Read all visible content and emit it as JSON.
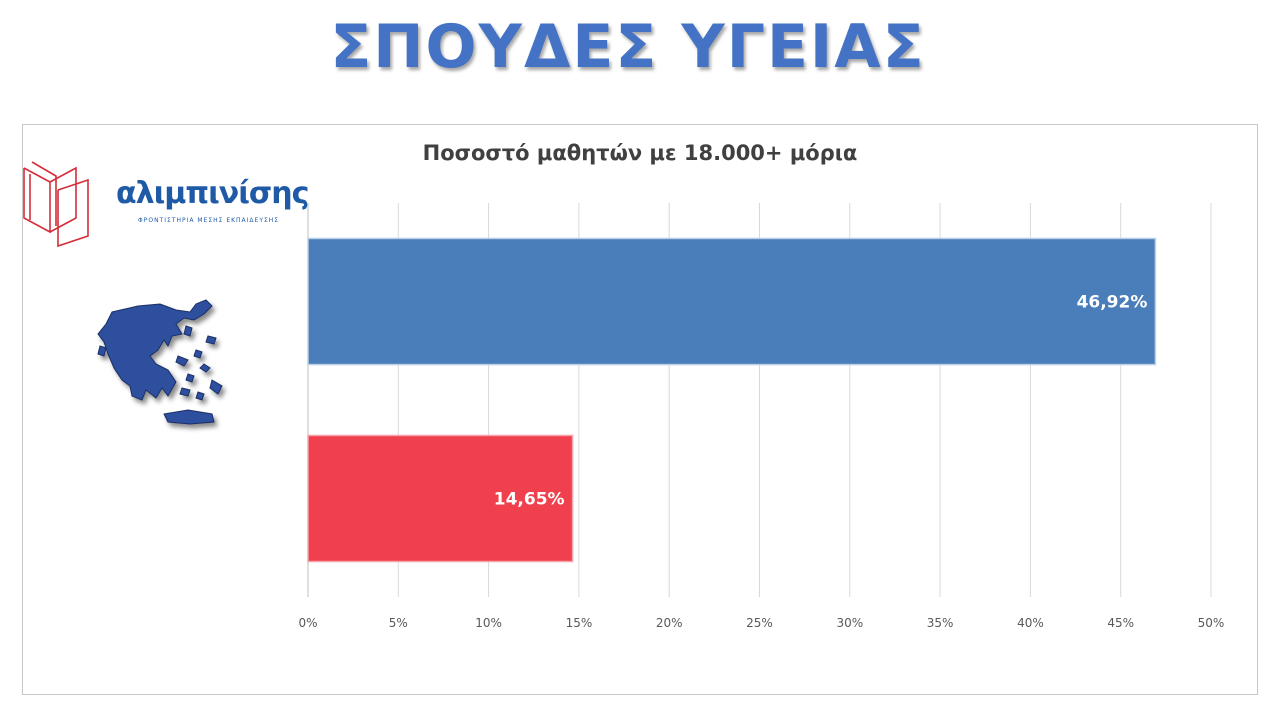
{
  "page": {
    "title": "ΣΠΟΥΔΕΣ ΥΓΕΙΑΣ"
  },
  "logo": {
    "name": "αλιμπινίσης",
    "subtitle": "ΦΡΟΝΤΙΣΤΗΡΙΑ ΜΕΣΗΣ ΕΚΠΑΙΔΕΥΣΗΣ"
  },
  "chart_data": {
    "type": "bar",
    "orientation": "horizontal",
    "title": "Ποσοστό μαθητών με 18.000+ μόρια",
    "categories": [
      "αλιμπινίσης",
      "Greece"
    ],
    "values": [
      46.92,
      14.65
    ],
    "value_labels": [
      "46,92%",
      "14,65%"
    ],
    "bar_colors": [
      "#4a7ebb",
      "#f0404d"
    ],
    "xlim": [
      0,
      50
    ],
    "xticks": [
      0,
      5,
      10,
      15,
      20,
      25,
      30,
      35,
      40,
      45,
      50
    ],
    "xtick_labels": [
      "0%",
      "5%",
      "10%",
      "15%",
      "20%",
      "25%",
      "30%",
      "35%",
      "40%",
      "45%",
      "50%"
    ],
    "grid": "vertical",
    "legend": "none",
    "category_markers": [
      "alimpinisis-logo",
      "greece-map"
    ]
  }
}
